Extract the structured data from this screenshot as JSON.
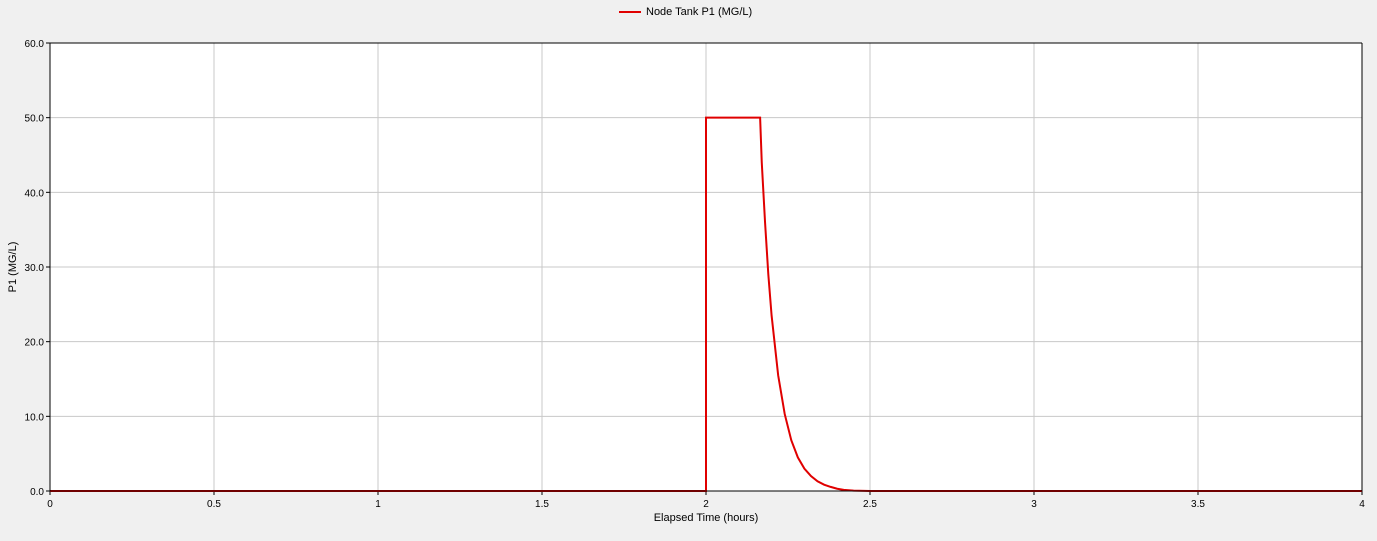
{
  "chart_data": {
    "type": "line",
    "title": "",
    "xlabel": "Elapsed Time (hours)",
    "ylabel": "P1 (MG/L)",
    "xlim": [
      0,
      4
    ],
    "ylim": [
      0,
      60
    ],
    "x_ticks": [
      0,
      0.5,
      1,
      1.5,
      2,
      2.5,
      3,
      3.5,
      4
    ],
    "x_tick_labels": [
      "0",
      "0.5",
      "1",
      "1.5",
      "2",
      "2.5",
      "3",
      "3.5",
      "4"
    ],
    "y_ticks": [
      0,
      10,
      20,
      30,
      40,
      50,
      60
    ],
    "y_tick_labels": [
      "0.0",
      "10.0",
      "20.0",
      "30.0",
      "40.0",
      "50.0",
      "60.0"
    ],
    "grid": true,
    "legend_position": "top-center",
    "series": [
      {
        "name": "Node Tank P1 (MG/L)",
        "color": "#e00000",
        "x": [
          0,
          2,
          2,
          2.165,
          2.17,
          2.18,
          2.19,
          2.2,
          2.22,
          2.24,
          2.26,
          2.28,
          2.3,
          2.32,
          2.34,
          2.36,
          2.38,
          2.4,
          2.42,
          2.45,
          2.5,
          3,
          3.5,
          4
        ],
        "values": [
          0,
          0,
          50,
          50,
          44,
          36,
          29,
          23.5,
          15.5,
          10.3,
          6.8,
          4.5,
          3.0,
          2.0,
          1.3,
          0.85,
          0.55,
          0.3,
          0.15,
          0.05,
          0,
          0,
          0,
          0
        ]
      }
    ]
  }
}
